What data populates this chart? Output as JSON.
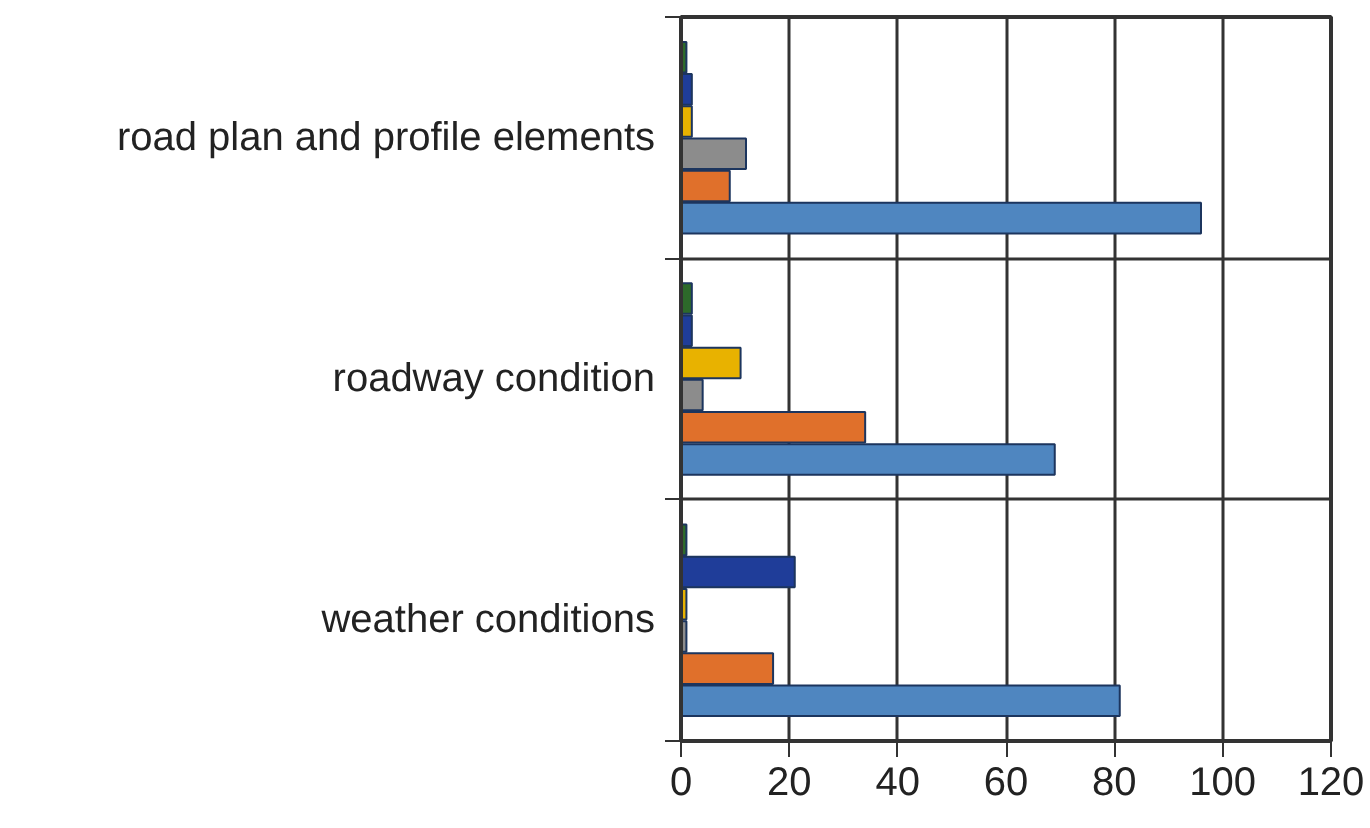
{
  "chart_data": {
    "type": "bar",
    "orientation": "horizontal",
    "categories": [
      "road plan and profile elements",
      "roadway condition",
      "weather conditions"
    ],
    "series": [
      {
        "color": "#4f86c0",
        "values": [
          96,
          69,
          81
        ]
      },
      {
        "color": "#e0702b",
        "values": [
          9,
          34,
          17
        ]
      },
      {
        "color": "#8c8c8c",
        "values": [
          12,
          4,
          1
        ]
      },
      {
        "color": "#e8b200",
        "values": [
          2,
          11,
          1
        ]
      },
      {
        "color": "#1f3d99",
        "values": [
          2,
          2,
          21
        ]
      },
      {
        "color": "#2d6a2a",
        "values": [
          1,
          2,
          1
        ]
      }
    ],
    "xlim": [
      0,
      120
    ],
    "xticks": [
      0,
      20,
      40,
      60,
      80,
      100,
      120
    ],
    "grid": true
  }
}
